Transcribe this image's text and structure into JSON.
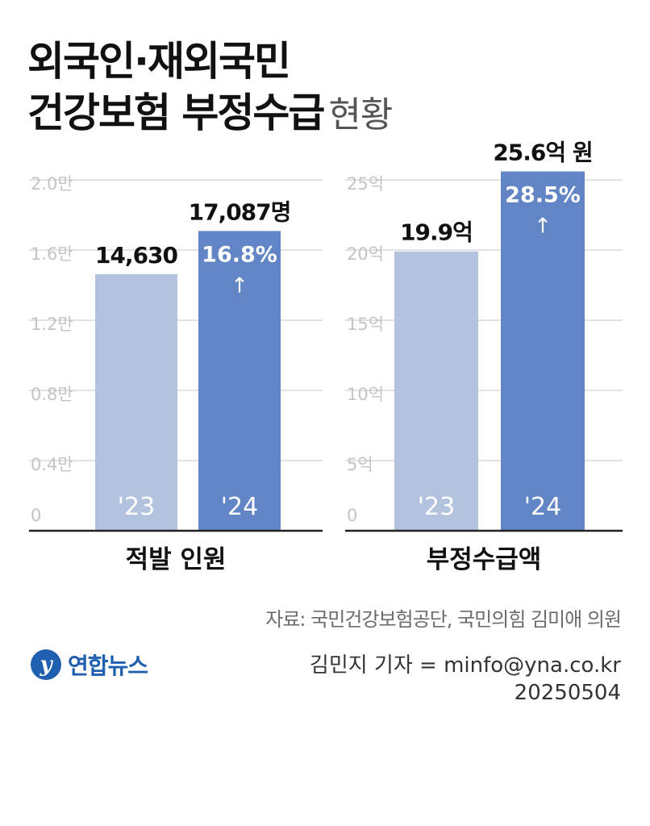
{
  "title": {
    "line1": "외국인·재외국민",
    "line2": "건강보험 부정수급",
    "line2_sub": "현황"
  },
  "colors": {
    "bar_2023": "#b3c3de",
    "bar_2024": "#6285c6",
    "grid": "#d8d8d8",
    "axis": "#222222"
  },
  "chart_data": [
    {
      "type": "bar",
      "title": "적발 인원",
      "categories": [
        "'23",
        "'24"
      ],
      "values": [
        14630,
        17087
      ],
      "value_labels": [
        "14,630",
        "17,087명"
      ],
      "change_label": "16.8%",
      "arrow": "↑",
      "ylim": [
        0,
        20000
      ],
      "yticks": [
        0,
        4000,
        8000,
        12000,
        16000,
        20000
      ],
      "ytick_labels": [
        "0",
        "0.4만",
        "0.8만",
        "1.2만",
        "1.6만",
        "2.0만"
      ],
      "grid": true
    },
    {
      "type": "bar",
      "title": "부정수급액",
      "categories": [
        "'23",
        "'24"
      ],
      "values": [
        19.9,
        25.6
      ],
      "value_labels": [
        "19.9억",
        "25.6억 원"
      ],
      "change_label": "28.5%",
      "arrow": "↑",
      "ylim": [
        0,
        25
      ],
      "yticks": [
        0,
        5,
        10,
        15,
        20,
        25
      ],
      "ytick_labels": [
        "0",
        "5억",
        "10억",
        "15억",
        "20억",
        "25억"
      ],
      "grid": true
    }
  ],
  "source": "자료: 국민건강보험공단, 국민의힘 김미애 의원",
  "logo": {
    "mark": "y",
    "text": "연합뉴스"
  },
  "credit": {
    "reporter": "김민지 기자 = minfo@yna.co.kr",
    "date": "20250504"
  }
}
